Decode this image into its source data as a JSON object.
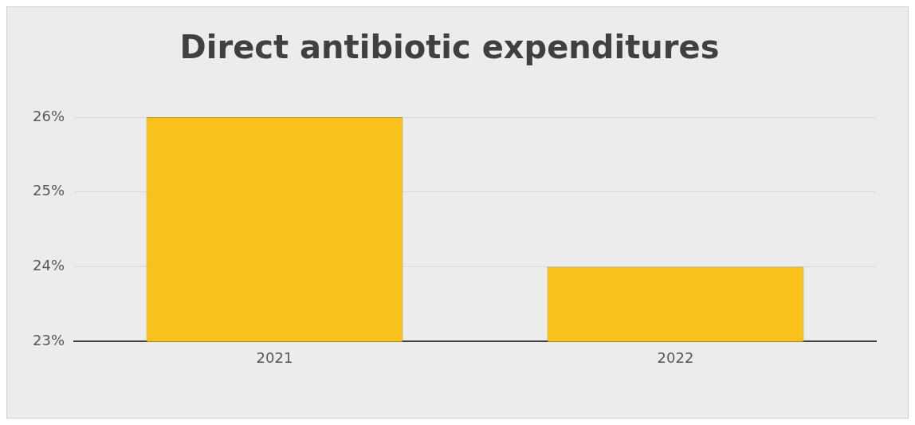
{
  "chart_data": {
    "type": "bar",
    "title": "Direct antibiotic expenditures",
    "categories": [
      "2021",
      "2022"
    ],
    "values": [
      26,
      24
    ],
    "color": "#f9c21b",
    "ylim": [
      23,
      26
    ],
    "yticks": [
      {
        "value": 23,
        "label": "23%"
      },
      {
        "value": 24,
        "label": "24%"
      },
      {
        "value": 25,
        "label": "25%"
      },
      {
        "value": 26,
        "label": "26%"
      }
    ],
    "grid": "y",
    "legend": false
  }
}
